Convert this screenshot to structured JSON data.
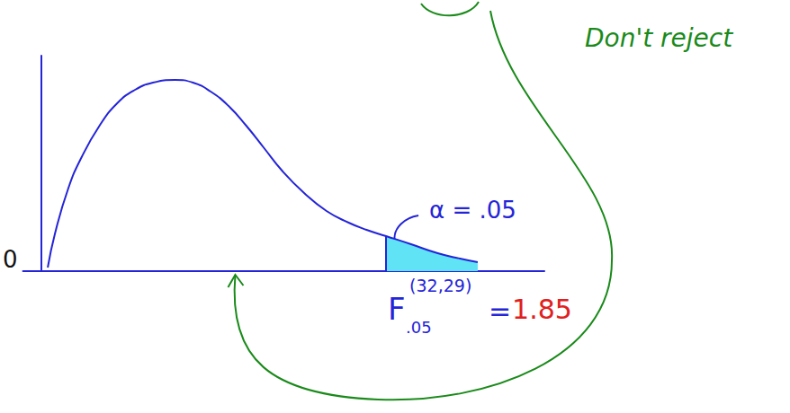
{
  "chart_data": {
    "type": "line",
    "x": [
      0.033,
      0.072,
      0.143,
      0.215,
      0.311,
      0.406,
      0.502,
      0.598,
      0.717,
      0.813,
      0.908,
      1.004,
      1.099,
      1.195,
      1.291,
      1.41,
      1.53,
      1.649,
      1.745,
      1.85,
      1.984,
      2.127,
      2.247,
      2.342
    ],
    "values": [
      0.02,
      0.21,
      0.46,
      0.635,
      0.81,
      0.935,
      1.01,
      1.05,
      1.065,
      1.05,
      1.0,
      0.92,
      0.81,
      0.685,
      0.56,
      0.435,
      0.335,
      0.27,
      0.23,
      0.195,
      0.15,
      0.1,
      0.07,
      0.05
    ],
    "color": "#2424d8",
    "xlim": [
      -0.1,
      2.7
    ],
    "xticks": [],
    "ylim": [
      0,
      1.2
    ],
    "yticks": [
      0
    ],
    "tick_labels": "y",
    "grid": false,
    "critical_value": {
      "value": 1.85,
      "label": "1.85",
      "symbol": "F",
      "subscript": ".05",
      "superscript": "(32,29)",
      "relation": "=",
      "color": "#e02020"
    },
    "alpha": {
      "label": "α = .05",
      "color": "#5fe3f5"
    },
    "decision": {
      "label": "Don't reject",
      "color": "#1a8a1a",
      "test_statistic": 1.04
    }
  }
}
